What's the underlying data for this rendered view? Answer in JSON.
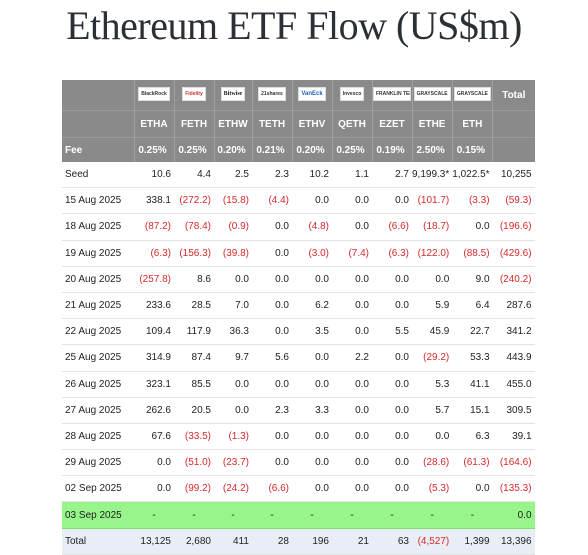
{
  "title": "Ethereum ETF Flow (US$m)",
  "columns": [
    {
      "logo": "BlackRock",
      "ticker": "ETHA",
      "fee": "0.25%"
    },
    {
      "logo": "Fidelity",
      "ticker": "FETH",
      "fee": "0.25%"
    },
    {
      "logo": "Bitwise",
      "ticker": "ETHW",
      "fee": "0.20%"
    },
    {
      "logo": "21shares",
      "ticker": "TETH",
      "fee": "0.21%"
    },
    {
      "logo": "VanEck",
      "ticker": "ETHV",
      "fee": "0.20%"
    },
    {
      "logo": "Invesco",
      "ticker": "QETH",
      "fee": "0.25%"
    },
    {
      "logo": "FRANKLIN TEMPLETON",
      "ticker": "EZET",
      "fee": "0.19%"
    },
    {
      "logo": "GRAYSCALE",
      "ticker": "ETHE",
      "fee": "2.50%"
    },
    {
      "logo": "GRAYSCALE",
      "ticker": "ETH",
      "fee": "0.15%"
    }
  ],
  "total_header": "Total",
  "fee_label": "Fee",
  "rows": [
    {
      "label": "Seed",
      "values": [
        "10.6",
        "4.4",
        "2.5",
        "2.3",
        "10.2",
        "1.1",
        "2.7",
        "9,199.3*",
        "1,022.5*"
      ],
      "total": "10,255",
      "kind": "seed"
    },
    {
      "label": "15 Aug 2025",
      "values": [
        "338.1",
        "(272.2)",
        "(15.8)",
        "(4.4)",
        "0.0",
        "0.0",
        "0.0",
        "(101.7)",
        "(3.3)"
      ],
      "total": "(59.3)"
    },
    {
      "label": "18 Aug 2025",
      "values": [
        "(87.2)",
        "(78.4)",
        "(0.9)",
        "0.0",
        "(4.8)",
        "0.0",
        "(6.6)",
        "(18.7)",
        "0.0"
      ],
      "total": "(196.6)"
    },
    {
      "label": "19 Aug 2025",
      "values": [
        "(6.3)",
        "(156.3)",
        "(39.8)",
        "0.0",
        "(3.0)",
        "(7.4)",
        "(6.3)",
        "(122.0)",
        "(88.5)"
      ],
      "total": "(429.6)"
    },
    {
      "label": "20 Aug 2025",
      "values": [
        "(257.8)",
        "8.6",
        "0.0",
        "0.0",
        "0.0",
        "0.0",
        "0.0",
        "0.0",
        "9.0"
      ],
      "total": "(240.2)"
    },
    {
      "label": "21 Aug 2025",
      "values": [
        "233.6",
        "28.5",
        "7.0",
        "0.0",
        "6.2",
        "0.0",
        "0.0",
        "5.9",
        "6.4"
      ],
      "total": "287.6"
    },
    {
      "label": "22 Aug 2025",
      "values": [
        "109.4",
        "117.9",
        "36.3",
        "0.0",
        "3.5",
        "0.0",
        "5.5",
        "45.9",
        "22.7"
      ],
      "total": "341.2"
    },
    {
      "label": "25 Aug 2025",
      "values": [
        "314.9",
        "87.4",
        "9.7",
        "5.6",
        "0.0",
        "2.2",
        "0.0",
        "(29.2)",
        "53.3"
      ],
      "total": "443.9"
    },
    {
      "label": "26 Aug 2025",
      "values": [
        "323.1",
        "85.5",
        "0.0",
        "0.0",
        "0.0",
        "0.0",
        "0.0",
        "5.3",
        "41.1"
      ],
      "total": "455.0"
    },
    {
      "label": "27 Aug 2025",
      "values": [
        "262.6",
        "20.5",
        "0.0",
        "2.3",
        "3.3",
        "0.0",
        "0.0",
        "5.7",
        "15.1"
      ],
      "total": "309.5"
    },
    {
      "label": "28 Aug 2025",
      "values": [
        "67.6",
        "(33.5)",
        "(1.3)",
        "0.0",
        "0.0",
        "0.0",
        "0.0",
        "0.0",
        "6.3"
      ],
      "total": "39.1"
    },
    {
      "label": "29 Aug 2025",
      "values": [
        "0.0",
        "(51.0)",
        "(23.7)",
        "0.0",
        "0.0",
        "0.0",
        "0.0",
        "(28.6)",
        "(61.3)"
      ],
      "total": "(164.6)"
    },
    {
      "label": "02 Sep 2025",
      "values": [
        "0.0",
        "(99.2)",
        "(24.2)",
        "(6.6)",
        "0.0",
        "0.0",
        "0.0",
        "(5.3)",
        "0.0"
      ],
      "total": "(135.3)"
    },
    {
      "label": "03 Sep 2025",
      "values": [
        "-",
        "-",
        "-",
        "-",
        "-",
        "-",
        "-",
        "-",
        "-"
      ],
      "total": "0.0",
      "kind": "highlight"
    },
    {
      "label": "Total",
      "values": [
        "13,125",
        "2,680",
        "411",
        "28",
        "196",
        "21",
        "63",
        "(4,527)",
        "1,399"
      ],
      "total": "13,396",
      "kind": "total"
    }
  ],
  "colors": {
    "header_bg": "#8a8a8a",
    "negative": "#d42a2a",
    "highlight_row": "#97f58b",
    "total_row": "#e9eef6"
  }
}
